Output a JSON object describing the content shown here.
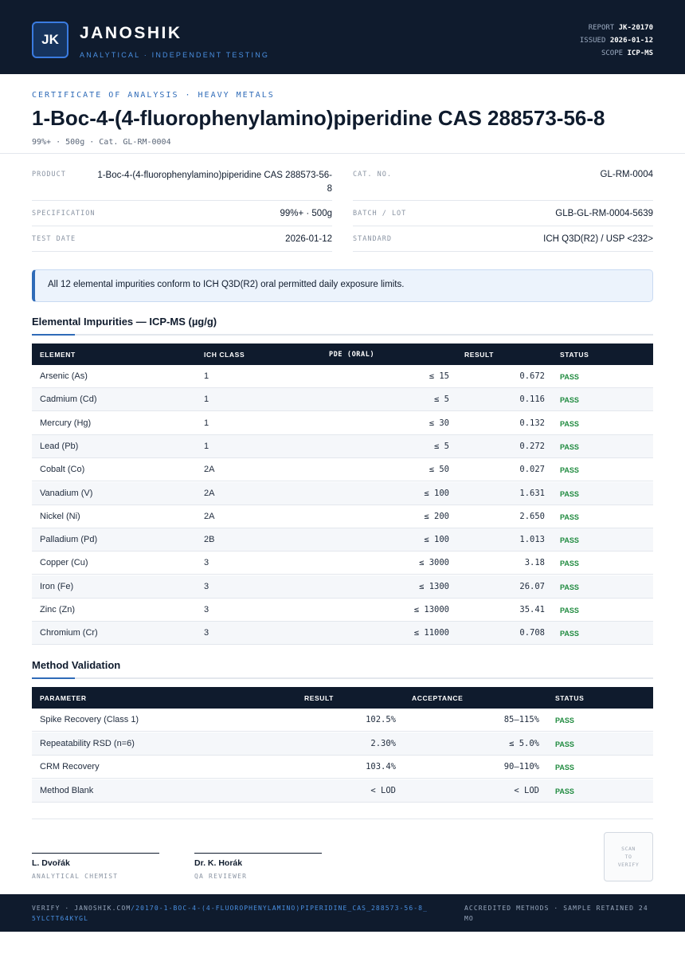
{
  "header": {
    "logo": "JK",
    "brand": "JANOSHIK",
    "tagline": "ANALYTICAL · INDEPENDENT TESTING",
    "report_label": "REPORT",
    "report_value": "JK-20170",
    "issued_label": "ISSUED",
    "issued_value": "2026-01-12",
    "scope_label": "SCOPE",
    "scope_value": "ICP-MS"
  },
  "doc": {
    "eyebrow": "CERTIFICATE OF ANALYSIS · HEAVY METALS",
    "title": "1-Boc-4-(4-fluorophenylamino)piperidine CAS 288573-56-8",
    "subline": "99%+ · 500g  ·  Cat. GL-RM-0004"
  },
  "info": {
    "product_label": "PRODUCT",
    "product_value_line1": "1-Boc-4-(4-fluorophenylamino)piperidine CAS 288573-56-",
    "product_value_line2": "8",
    "spec_label": "SPECIFICATION",
    "spec_value": "99%+ · 500g",
    "date_label": "TEST DATE",
    "date_value": "2026-01-12",
    "cat_label": "CAT. NO.",
    "cat_value": "GL-RM-0004",
    "batch_label": "BATCH / LOT",
    "batch_value": "GLB-GL-RM-0004-5639",
    "standard_label": "STANDARD",
    "standard_value": "ICH Q3D(R2) / USP <232>"
  },
  "notice": "All 12 elemental impurities conform to ICH Q3D(R2) oral permitted daily exposure limits.",
  "impurities": {
    "title": "Elemental Impurities — ICP-MS (µg/g)",
    "headers": [
      "ELEMENT",
      "ICH CLASS",
      "PDE (ORAL)",
      "RESULT",
      "STATUS"
    ],
    "rows": [
      {
        "element": "Arsenic (As)",
        "class": "1",
        "pde": "≤ 15",
        "result": "0.672",
        "status": "PASS"
      },
      {
        "element": "Cadmium (Cd)",
        "class": "1",
        "pde": "≤ 5",
        "result": "0.116",
        "status": "PASS"
      },
      {
        "element": "Mercury (Hg)",
        "class": "1",
        "pde": "≤ 30",
        "result": "0.132",
        "status": "PASS"
      },
      {
        "element": "Lead (Pb)",
        "class": "1",
        "pde": "≤ 5",
        "result": "0.272",
        "status": "PASS"
      },
      {
        "element": "Cobalt (Co)",
        "class": "2A",
        "pde": "≤ 50",
        "result": "0.027",
        "status": "PASS"
      },
      {
        "element": "Vanadium (V)",
        "class": "2A",
        "pde": "≤ 100",
        "result": "1.631",
        "status": "PASS"
      },
      {
        "element": "Nickel (Ni)",
        "class": "2A",
        "pde": "≤ 200",
        "result": "2.650",
        "status": "PASS"
      },
      {
        "element": "Palladium (Pd)",
        "class": "2B",
        "pde": "≤ 100",
        "result": "1.013",
        "status": "PASS"
      },
      {
        "element": "Copper (Cu)",
        "class": "3",
        "pde": "≤ 3000",
        "result": "3.18",
        "status": "PASS"
      },
      {
        "element": "Iron (Fe)",
        "class": "3",
        "pde": "≤ 1300",
        "result": "26.07",
        "status": "PASS"
      },
      {
        "element": "Zinc (Zn)",
        "class": "3",
        "pde": "≤ 13000",
        "result": "35.41",
        "status": "PASS"
      },
      {
        "element": "Chromium (Cr)",
        "class": "3",
        "pde": "≤ 11000",
        "result": "0.708",
        "status": "PASS"
      }
    ]
  },
  "validation": {
    "title": "Method Validation",
    "headers": [
      "PARAMETER",
      "RESULT",
      "ACCEPTANCE",
      "STATUS"
    ],
    "rows": [
      {
        "parameter": "Spike Recovery (Class 1)",
        "result": "102.5%",
        "acceptance": "85–115%",
        "status": "PASS"
      },
      {
        "parameter": "Repeatability RSD (n=6)",
        "result": "2.30%",
        "acceptance": "≤ 5.0%",
        "status": "PASS"
      },
      {
        "parameter": "CRM Recovery",
        "result": "103.4%",
        "acceptance": "90–110%",
        "status": "PASS"
      },
      {
        "parameter": "Method Blank",
        "result": "< LOD",
        "acceptance": "< LOD",
        "status": "PASS"
      }
    ]
  },
  "signatures": [
    {
      "name": "L. Dvořák",
      "role": "ANALYTICAL CHEMIST"
    },
    {
      "name": "Dr. K. Horák",
      "role": "QA REVIEWER"
    }
  ],
  "qr": {
    "line1": "SCAN",
    "line2": "TO",
    "line3": "VERIFY"
  },
  "footer": {
    "verify_prefix": "VERIFY · JANOSHIK.COM",
    "verify_link": "/20170-1-BOC-4-(4-FLUOROPHENYLAMINO)PIPERIDINE_CAS_288573-56-8_5YLCTT64KYGL",
    "right": "ACCREDITED METHODS · SAMPLE RETAINED 24 MO"
  }
}
